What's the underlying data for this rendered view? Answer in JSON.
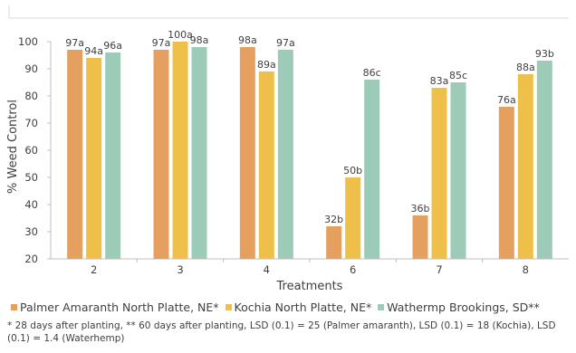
{
  "chart_data": {
    "type": "bar",
    "xlabel": "Treatments",
    "ylabel": "% Weed Control",
    "ylim": [
      20,
      100
    ],
    "yticks": [
      20,
      30,
      40,
      50,
      60,
      70,
      80,
      90,
      100
    ],
    "grid": false,
    "legend_position": "bottom",
    "categories": [
      "2",
      "3",
      "4",
      "6",
      "7",
      "8"
    ],
    "series": [
      {
        "name": "Palmer Amaranth North Platte, NE*",
        "color": "#E5A060",
        "values": [
          97,
          97,
          98,
          32,
          36,
          76
        ],
        "labels": [
          "97a",
          "97a",
          "98a",
          "32b",
          "36b",
          "76a"
        ]
      },
      {
        "name": "Kochia North Platte, NE*",
        "color": "#EEC04A",
        "values": [
          94,
          100,
          89,
          50,
          83,
          88
        ],
        "labels": [
          "94a",
          "100a",
          "89a",
          "50b",
          "83a",
          "88a"
        ]
      },
      {
        "name": "Wathermp Brookings, SD**",
        "color": "#9CCBB8",
        "values": [
          96,
          98,
          97,
          86,
          85,
          93
        ],
        "labels": [
          "96a",
          "98a",
          "97a",
          "86c",
          "85c",
          "93b"
        ]
      }
    ]
  },
  "footnote": "* 28 days after planting, ** 60 days after planting, LSD (0.1) = 25 (Palmer amaranth), LSD (0.1) = 18 (Kochia), LSD (0.1) = 1.4 (Waterhemp)"
}
